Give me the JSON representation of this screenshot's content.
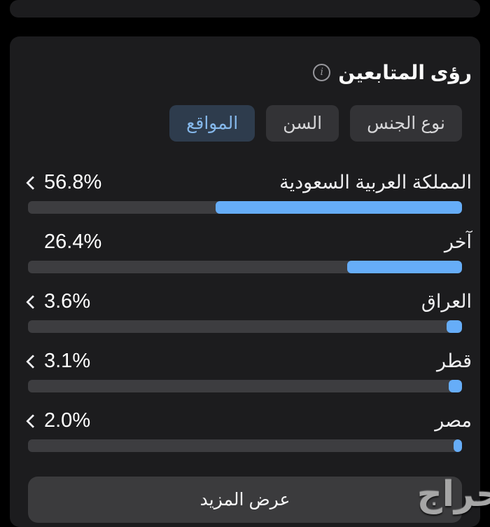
{
  "colors": {
    "page_bg": "#000000",
    "card_bg": "#1c1c1e",
    "track": "#3d3d40",
    "accent_blue": "#66adf8",
    "tab_bg": "#333336",
    "tab_text": "#d6d6d8",
    "selected_tab_bg": "#2e3c4d",
    "selected_tab_text": "#85b8eb",
    "button_bg": "#3b3b3d"
  },
  "insights": {
    "title": "رؤى المتابعين",
    "info_icon": "info-circle-icon",
    "tabs": [
      {
        "id": "gender",
        "label": "نوع الجنس",
        "selected": false
      },
      {
        "id": "age",
        "label": "السن",
        "selected": false
      },
      {
        "id": "locations",
        "label": "المواقع",
        "selected": true
      }
    ],
    "locations": [
      {
        "label": "المملكة العربية السعودية",
        "value": 56.8,
        "value_label": "56.8%",
        "chevron": true
      },
      {
        "label": "آخر",
        "value": 26.4,
        "value_label": "26.4%",
        "chevron": false
      },
      {
        "label": "العراق",
        "value": 3.6,
        "value_label": "3.6%",
        "chevron": true
      },
      {
        "label": "قطر",
        "value": 3.1,
        "value_label": "3.1%",
        "chevron": true
      },
      {
        "label": "مصر",
        "value": 2.0,
        "value_label": "2.0%",
        "chevron": true
      }
    ],
    "show_more_label": "عرض المزيد"
  },
  "watermark": {
    "text": "حراج"
  }
}
